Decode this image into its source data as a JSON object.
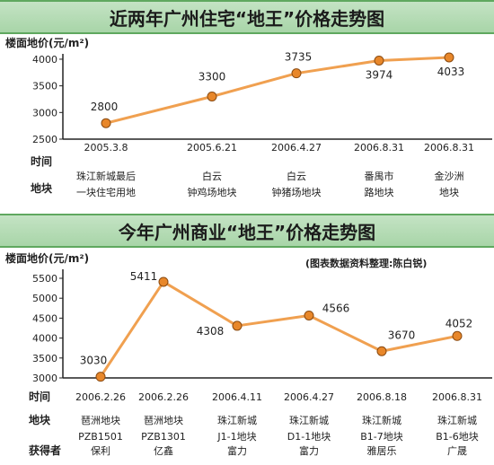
{
  "chart_data": [
    {
      "type": "line",
      "title": "近两年广州住宅“地王”价格走势图",
      "ylabel": "楼面地价(元/m²)",
      "ylim": [
        2500,
        4100
      ],
      "yticks": [
        2500,
        3000,
        3500,
        4000
      ],
      "categories": [
        "2005.3.8",
        "2005.6.21",
        "2006.4.27",
        "2006.8.31",
        "2006.8.31"
      ],
      "values": [
        2800,
        3300,
        3735,
        3974,
        4033
      ],
      "value_labels": [
        "2800",
        "3300",
        "3735",
        "3974",
        "4033"
      ],
      "row_headers": [
        "时间",
        "地块"
      ],
      "parcels": [
        [
          "珠江新城最后",
          "一块住宅用地"
        ],
        [
          "白云",
          "钟鸡场地块"
        ],
        [
          "白云",
          "钟猪场地块"
        ],
        [
          "番禺市",
          "路地块"
        ],
        [
          "金沙洲",
          "地块"
        ]
      ]
    },
    {
      "type": "line",
      "title": "今年广州商业“地王”价格走势图",
      "ylabel": "楼面地价(元/m²)",
      "credit": "(图表数据资料整理:陈白锐)",
      "ylim": [
        3000,
        5500
      ],
      "yticks": [
        3000,
        3500,
        4000,
        4500,
        5000,
        5500
      ],
      "categories": [
        "2006.2.26",
        "2006.2.26",
        "2006.4.11",
        "2006.4.27",
        "2006.8.18",
        "2006.8.31"
      ],
      "values": [
        3030,
        5411,
        4308,
        4566,
        3670,
        4052
      ],
      "value_labels": [
        "3030",
        "5411",
        "4308",
        "4566",
        "3670",
        "4052"
      ],
      "row_headers": [
        "时间",
        "地块",
        "获得者"
      ],
      "parcels": [
        [
          "琶洲地块",
          "PZB1501"
        ],
        [
          "琶洲地块",
          "PZB1301"
        ],
        [
          "珠江新城",
          "J1-1地块"
        ],
        [
          "珠江新城",
          "D1-1地块"
        ],
        [
          "珠江新城",
          "B1-7地块"
        ],
        [
          "珠江新城",
          "B1-6地块"
        ]
      ],
      "winners": [
        "保利",
        "亿鑫",
        "富力",
        "富力",
        "雅居乐",
        "广晟"
      ]
    }
  ],
  "style": {
    "line_color": "#f0a050",
    "marker_color": "#e8872a",
    "marker_edge": "#8a4a10",
    "axis_color": "#222222",
    "banner_color": "#b3dbb3"
  }
}
